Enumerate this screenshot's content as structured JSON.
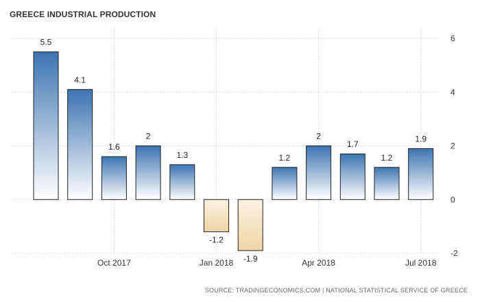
{
  "title": "GREECE INDUSTRIAL PRODUCTION",
  "source": "SOURCE: TRADINGECONOMICS.COM | NATIONAL STATISTICAL SERVICE OF GREECE",
  "colors": {
    "positive_top": "#3c74b1",
    "positive_bottom": "#ffffff",
    "negative_top": "#fbf3e2",
    "negative_bottom": "#f0d4a3",
    "bar_stroke": "#1f1f1f"
  },
  "chart_data": {
    "type": "bar",
    "title": "GREECE INDUSTRIAL PRODUCTION",
    "categories": [
      "Aug 2017",
      "Sep 2017",
      "Oct 2017",
      "Nov 2017",
      "Dec 2017",
      "Jan 2018",
      "Feb 2018",
      "Mar 2018",
      "Apr 2018",
      "May 2018",
      "Jun 2018",
      "Jul 2018"
    ],
    "values": [
      5.5,
      4.1,
      1.6,
      2,
      1.3,
      -1.2,
      -1.9,
      1.2,
      2,
      1.7,
      1.2,
      1.9
    ],
    "data_labels": [
      "5.5",
      "4.1",
      "1.6",
      "2",
      "1.3",
      "-1.2",
      "-1.9",
      "1.2",
      "2",
      "1.7",
      "1.2",
      "1.9"
    ],
    "x_tick_labels": [
      "Oct 2017",
      "Jan 2018",
      "Apr 2018",
      "Jul 2018"
    ],
    "y_ticks": [
      -2,
      0,
      2,
      4,
      6
    ],
    "ylim": [
      -2,
      6
    ],
    "y_axis_position": "right",
    "grid": true,
    "legend": "none"
  }
}
